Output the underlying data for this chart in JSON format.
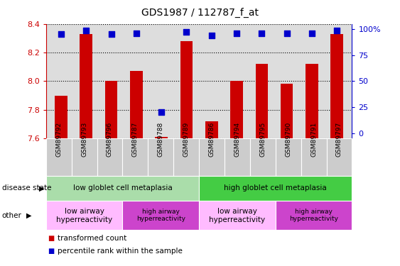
{
  "title": "GDS1987 / 112787_f_at",
  "samples": [
    "GSM89792",
    "GSM89793",
    "GSM89796",
    "GSM89787",
    "GSM89788",
    "GSM89789",
    "GSM89786",
    "GSM89794",
    "GSM89795",
    "GSM89790",
    "GSM89791",
    "GSM89797"
  ],
  "transformed_count": [
    7.9,
    8.33,
    8.0,
    8.07,
    7.61,
    8.28,
    7.72,
    8.0,
    8.12,
    7.98,
    8.12,
    8.33
  ],
  "percentile_rank": [
    95,
    99,
    95,
    96,
    20,
    97,
    94,
    96,
    96,
    96,
    96,
    99
  ],
  "ylim": [
    7.6,
    8.4
  ],
  "yticks": [
    7.6,
    7.8,
    8.0,
    8.2,
    8.4
  ],
  "y2ticks": [
    0,
    25,
    50,
    75,
    100
  ],
  "bar_color": "#cc0000",
  "dot_color": "#0000cc",
  "disease_state_groups": [
    {
      "label": "low globlet cell metaplasia",
      "start": 0,
      "end": 6,
      "color": "#aaddaa"
    },
    {
      "label": "high globlet cell metaplasia",
      "start": 6,
      "end": 12,
      "color": "#44cc44"
    }
  ],
  "other_groups": [
    {
      "label": "low airway\nhyperreactivity",
      "start": 0,
      "end": 3,
      "color": "#ffbbff"
    },
    {
      "label": "high airway\nhyperreactivity",
      "start": 3,
      "end": 6,
      "color": "#cc44cc"
    },
    {
      "label": "low airway\nhyperreactivity",
      "start": 6,
      "end": 9,
      "color": "#ffbbff"
    },
    {
      "label": "high airway\nhyperreactivity",
      "start": 9,
      "end": 12,
      "color": "#cc44cc"
    }
  ],
  "disease_state_label": "disease state",
  "other_label": "other",
  "bar_width": 0.5,
  "dot_size": 30,
  "ax_background": "#dddddd",
  "fig_width": 5.63,
  "fig_height": 3.75,
  "dpi": 100
}
